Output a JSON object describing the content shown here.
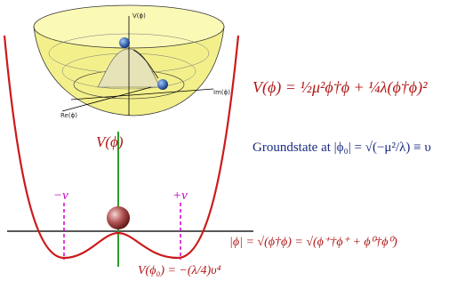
{
  "inset": {
    "axis_v": "V(ϕ)",
    "axis_im": "Im(ϕ)",
    "axis_re": "Re(ϕ)"
  },
  "plot": {
    "v_label": "V(ϕ)",
    "minus_v": "−v",
    "plus_v": "+v"
  },
  "equations": {
    "potential": "V(ϕ) = ½μ²ϕ†ϕ + ¼λ(ϕ†ϕ)²",
    "groundstate": "Groundstate at |ϕ₀| = √(−μ²/λ) ≡ υ",
    "modulus": "|ϕ| = √(ϕ†ϕ) = √(ϕ⁺†ϕ⁺ + ϕ⁰†ϕ⁰)",
    "minimum": "V(ϕ₀) = −(λ/4)υ⁴"
  }
}
